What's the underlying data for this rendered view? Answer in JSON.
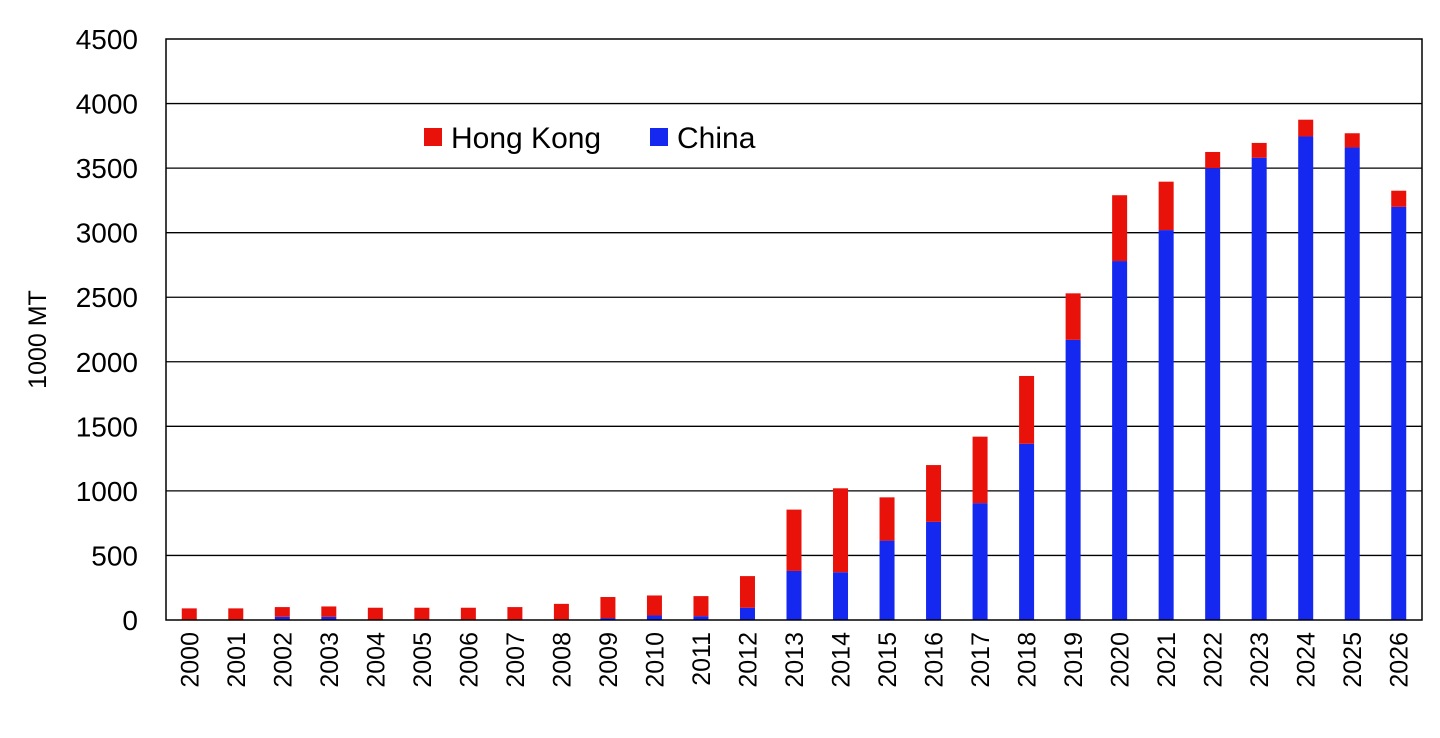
{
  "chart_data": {
    "type": "bar",
    "stacked": true,
    "title": "",
    "xlabel": "",
    "ylabel": "1000 MT",
    "ylim": [
      0,
      4500
    ],
    "yticks": [
      0,
      500,
      1000,
      1500,
      2000,
      2500,
      3000,
      3500,
      4000,
      4500
    ],
    "grid": "horizontal",
    "legend_position": "top-left",
    "categories": [
      "2000",
      "2001",
      "2002",
      "2003",
      "2004",
      "2005",
      "2006",
      "2007",
      "2008",
      "2009",
      "2010",
      "2011",
      "2012",
      "2013",
      "2014",
      "2015",
      "2016",
      "2017",
      "2018",
      "2019",
      "2020",
      "2021",
      "2022",
      "2023",
      "2024",
      "2025",
      "2026"
    ],
    "series": [
      {
        "name": "China",
        "color": "#1428f0",
        "values": [
          3,
          3,
          25,
          25,
          3,
          3,
          3,
          3,
          3,
          15,
          35,
          30,
          95,
          380,
          370,
          615,
          760,
          905,
          1365,
          2170,
          2780,
          3020,
          3500,
          3580,
          3745,
          3660,
          3200
        ]
      },
      {
        "name": "Hong Kong",
        "color": "#e8120a",
        "values": [
          87,
          87,
          75,
          80,
          92,
          92,
          92,
          97,
          122,
          163,
          155,
          155,
          245,
          475,
          650,
          335,
          440,
          515,
          525,
          360,
          510,
          375,
          125,
          115,
          130,
          110,
          125
        ]
      }
    ],
    "legend": [
      {
        "label": "Hong Kong",
        "color": "#e8120a"
      },
      {
        "label": "China",
        "color": "#1428f0"
      }
    ]
  }
}
